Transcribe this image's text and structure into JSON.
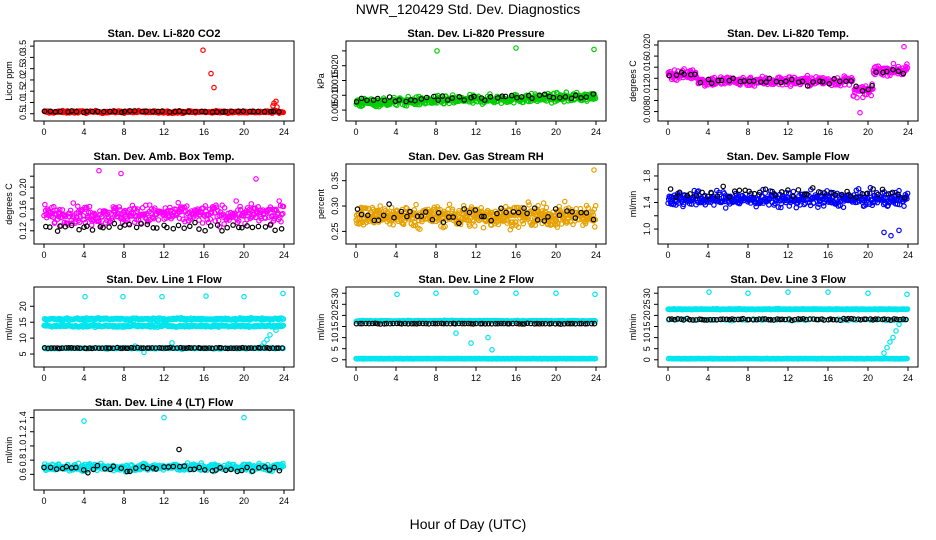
{
  "figure": {
    "title": "NWR_120429  Std. Dev. Diagnostics",
    "xlabel": "Hour of Day (UTC)"
  },
  "chart_data": [
    {
      "type": "scatter",
      "title": "Stan. Dev. Li-820 CO2",
      "ylabel": "Licor ppm",
      "xlim": [
        0,
        24
      ],
      "ylim": [
        0.4,
        3.55
      ],
      "xticks": [
        0,
        4,
        8,
        12,
        16,
        20,
        24
      ],
      "yticks": [
        0.5,
        1.0,
        1.5,
        2.0,
        2.5,
        3.0,
        3.5
      ],
      "ytick_labels": [
        "0.5",
        "1.0",
        "1.5",
        "2.0",
        "2.5",
        "3.0",
        "3.5"
      ],
      "series": [
        {
          "color": "#ff0000",
          "base": 0.58,
          "spread": 0.09,
          "n": 300,
          "pattern": "flat",
          "extra": [
            [
              15.9,
              3.32
            ],
            [
              16.7,
              2.28
            ],
            [
              17.0,
              1.66
            ],
            [
              23.0,
              0.97
            ],
            [
              23.2,
              1.05
            ],
            [
              22.9,
              0.85
            ],
            [
              23.3,
              0.8
            ]
          ]
        },
        {
          "color": "#000000",
          "base": 0.6,
          "spread": 0.05,
          "n": 45,
          "pattern": "flat"
        }
      ]
    },
    {
      "type": "scatter",
      "title": "Stan. Dev. Li-820 Pressure",
      "ylabel": "kPa",
      "xlim": [
        0,
        24
      ],
      "ylim": [
        0.003,
        0.027
      ],
      "xticks": [
        0,
        4,
        8,
        12,
        16,
        20,
        24
      ],
      "yticks": [
        0.005,
        0.01,
        0.015,
        0.02,
        0.025
      ],
      "ytick_labels": [
        "0.005",
        "0.010",
        "0.015",
        "0.020",
        ""
      ],
      "series": [
        {
          "color": "#00cc00",
          "base": 0.0075,
          "spread": 0.0025,
          "n": 420,
          "pattern": "rising",
          "extra": [
            [
              8.1,
              0.025
            ],
            [
              16.0,
              0.026
            ],
            [
              23.8,
              0.0255
            ]
          ]
        },
        {
          "color": "#000000",
          "base": 0.0085,
          "spread": 0.0015,
          "n": 45,
          "pattern": "rising"
        }
      ]
    },
    {
      "type": "scatter",
      "title": "Stan. Dev. Li-820 Temp.",
      "ylabel": "degrees C",
      "xlim": [
        0,
        24
      ],
      "ylim": [
        0.0072,
        0.02
      ],
      "xticks": [
        0,
        4,
        8,
        12,
        16,
        20,
        24
      ],
      "yticks": [
        0.008,
        0.01,
        0.012,
        0.014,
        0.016,
        0.018,
        0.02
      ],
      "ytick_labels": [
        "0.008",
        "",
        "0.012",
        "",
        "0.016",
        "",
        "0.020"
      ],
      "series": [
        {
          "color": "#ff00ff",
          "base": 0.0135,
          "spread": 0.0015,
          "n": 420,
          "pattern": "temp",
          "extra": [
            [
              19.2,
              0.0078
            ],
            [
              18.9,
              0.0105
            ],
            [
              23.6,
              0.0197
            ]
          ]
        },
        {
          "color": "#000000",
          "base": 0.0135,
          "spread": 0.0012,
          "n": 45,
          "pattern": "temp"
        }
      ]
    },
    {
      "type": "scatter",
      "title": "Stan. Dev. Amb. Box Temp.",
      "ylabel": "degrees C",
      "xlim": [
        0,
        24
      ],
      "ylim": [
        0.105,
        0.235
      ],
      "xticks": [
        0,
        4,
        8,
        12,
        16,
        20,
        24
      ],
      "yticks": [
        0.12,
        0.14,
        0.16,
        0.18,
        0.2,
        0.22
      ],
      "ytick_labels": [
        "0.12",
        "",
        "0.16",
        "",
        "0.20",
        ""
      ],
      "series": [
        {
          "color": "#ff00ff",
          "base": 0.15,
          "spread": 0.03,
          "n": 380,
          "pattern": "flat",
          "extra": [
            [
              5.5,
              0.23
            ],
            [
              7.7,
              0.225
            ],
            [
              21.2,
              0.215
            ]
          ]
        },
        {
          "color": "#000000",
          "base": 0.128,
          "spread": 0.012,
          "n": 45,
          "pattern": "flat"
        }
      ]
    },
    {
      "type": "scatter",
      "title": "Stan. Dev. Gas Stream RH",
      "ylabel": "percent",
      "xlim": [
        0,
        24
      ],
      "ylim": [
        0.235,
        0.375
      ],
      "xticks": [
        0,
        4,
        8,
        12,
        16,
        20,
        24
      ],
      "yticks": [
        0.25,
        0.3,
        0.35
      ],
      "ytick_labels": [
        "0.25",
        "0.30",
        "0.35"
      ],
      "series": [
        {
          "color": "#e6a000",
          "base": 0.28,
          "spread": 0.035,
          "n": 520,
          "pattern": "flat",
          "extra": [
            [
              23.8,
              0.371
            ]
          ]
        },
        {
          "color": "#000000",
          "base": 0.285,
          "spread": 0.03,
          "n": 45,
          "pattern": "flat"
        }
      ]
    },
    {
      "type": "scatter",
      "title": "Stan. Dev. Sample Flow",
      "ylabel": "ml/min",
      "xlim": [
        0,
        24
      ],
      "ylim": [
        0.85,
        1.92
      ],
      "xticks": [
        0,
        4,
        8,
        12,
        16,
        20,
        24
      ],
      "yticks": [
        1.0,
        1.2,
        1.4,
        1.6,
        1.8
      ],
      "ytick_labels": [
        "1.0",
        "",
        "1.4",
        "",
        "1.8"
      ],
      "series": [
        {
          "color": "#0000ff",
          "base": 1.45,
          "spread": 0.2,
          "n": 420,
          "pattern": "flat",
          "extra": [
            [
              22.3,
              0.9
            ],
            [
              21.6,
              0.95
            ],
            [
              23.1,
              0.98
            ]
          ]
        },
        {
          "color": "#000000",
          "base": 1.55,
          "spread": 0.15,
          "n": 45,
          "pattern": "flat"
        }
      ]
    },
    {
      "type": "scatter",
      "title": "Stan. Dev. Line 1 Flow",
      "ylabel": "ml/min",
      "xlim": [
        0,
        24
      ],
      "ylim": [
        2.5,
        24.8
      ],
      "xticks": [
        0,
        4,
        8,
        12,
        16,
        20,
        24
      ],
      "yticks": [
        5,
        10,
        15,
        20
      ],
      "ytick_labels": [
        "5",
        "10",
        "15",
        "20"
      ],
      "series": [
        {
          "color": "#00e5ee",
          "base": 16,
          "spread": 0.6,
          "n": 260,
          "pattern": "band16"
        },
        {
          "color": "#00e5ee",
          "base": 13.8,
          "spread": 0.6,
          "n": 260,
          "pattern": "band14"
        },
        {
          "color": "#00e5ee",
          "base": 6.8,
          "spread": 0.3,
          "n": 140,
          "pattern": "flat",
          "extra": [
            [
              4.1,
              23.0
            ],
            [
              7.9,
              23.0
            ],
            [
              11.8,
              23.0
            ],
            [
              16.2,
              23.2
            ],
            [
              20.0,
              23.0
            ],
            [
              23.9,
              24.0
            ],
            [
              9.1,
              7.5
            ],
            [
              12.8,
              8.5
            ],
            [
              13.8,
              6.5
            ],
            [
              10.0,
              5.5
            ],
            [
              22.0,
              8.5
            ],
            [
              22.3,
              9.5
            ],
            [
              22.6,
              11
            ],
            [
              21.8,
              7.5
            ],
            [
              23.2,
              12.5
            ]
          ]
        },
        {
          "color": "#000000",
          "base": 6.9,
          "spread": 0.2,
          "n": 80,
          "pattern": "flat"
        }
      ]
    },
    {
      "type": "scatter",
      "title": "Stan. Dev. Line 2 Flow",
      "ylabel": "ml/min",
      "xlim": [
        0,
        24
      ],
      "ylim": [
        -1,
        31
      ],
      "xticks": [
        0,
        4,
        8,
        12,
        16,
        20,
        24
      ],
      "yticks": [
        0,
        5,
        10,
        15,
        20,
        25,
        30
      ],
      "ytick_labels": [
        "0",
        "5",
        "10",
        "15",
        "20",
        "25",
        "30"
      ],
      "series": [
        {
          "color": "#00e5ee",
          "base": 17.5,
          "spread": 0.4,
          "n": 300,
          "pattern": "flat",
          "extra": [
            [
              4.1,
              29.5
            ],
            [
              8.0,
              30.0
            ],
            [
              12.0,
              30.5
            ],
            [
              16.0,
              30.0
            ],
            [
              20.0,
              30.0
            ],
            [
              23.9,
              29.5
            ],
            [
              10.0,
              12
            ],
            [
              11.5,
              7.5
            ],
            [
              13.2,
              10
            ],
            [
              13.6,
              4.5
            ]
          ]
        },
        {
          "color": "#00e5ee",
          "base": 0.5,
          "spread": 0.2,
          "n": 260,
          "pattern": "flat"
        },
        {
          "color": "#000000",
          "base": 16.3,
          "spread": 0.3,
          "n": 80,
          "pattern": "flat"
        }
      ]
    },
    {
      "type": "scatter",
      "title": "Stan. Dev. Line 3 Flow",
      "ylabel": "ml/min",
      "xlim": [
        0,
        24
      ],
      "ylim": [
        -1,
        31
      ],
      "xticks": [
        0,
        4,
        8,
        12,
        16,
        20,
        24
      ],
      "yticks": [
        0,
        5,
        10,
        15,
        20,
        25,
        30
      ],
      "ytick_labels": [
        "0",
        "5",
        "10",
        "15",
        "20",
        "25",
        "30"
      ],
      "series": [
        {
          "color": "#00e5ee",
          "base": 22.8,
          "spread": 0.3,
          "n": 300,
          "pattern": "flat",
          "extra": [
            [
              4.1,
              30.5
            ],
            [
              8.0,
              30.0
            ],
            [
              12.0,
              30.5
            ],
            [
              16.0,
              30.5
            ],
            [
              20.0,
              30.0
            ],
            [
              23.9,
              29.5
            ],
            [
              21.9,
              5.5
            ],
            [
              22.2,
              8
            ],
            [
              22.5,
              10
            ],
            [
              22.8,
              13
            ],
            [
              23.1,
              16
            ],
            [
              21.6,
              3
            ]
          ]
        },
        {
          "color": "#00e5ee",
          "base": 0.5,
          "spread": 0.2,
          "n": 260,
          "pattern": "flat"
        },
        {
          "color": "#00e5ee",
          "base": 18,
          "spread": 0.6,
          "n": 60,
          "pattern": "flat"
        },
        {
          "color": "#000000",
          "base": 18.2,
          "spread": 0.6,
          "n": 80,
          "pattern": "flat"
        }
      ]
    },
    {
      "type": "scatter",
      "title": "Stan. Dev. Line 4 (LT) Flow",
      "ylabel": "ml/min",
      "xlim": [
        0,
        24
      ],
      "ylim": [
        0.45,
        1.45
      ],
      "xticks": [
        0,
        4,
        8,
        12,
        16,
        20,
        24
      ],
      "yticks": [
        0.6,
        0.8,
        1.0,
        1.2,
        1.4
      ],
      "ytick_labels": [
        "0.6",
        "0.8",
        "1.0",
        "1.2",
        "1.4"
      ],
      "series": [
        {
          "color": "#00e5ee",
          "base": 0.7,
          "spread": 0.09,
          "n": 380,
          "pattern": "flat",
          "extra": [
            [
              4.0,
              1.35
            ],
            [
              12.0,
              1.4
            ],
            [
              20.0,
              1.4
            ]
          ]
        },
        {
          "color": "#000000",
          "base": 0.68,
          "spread": 0.08,
          "n": 45,
          "pattern": "flat",
          "extra": [
            [
              13.5,
              0.95
            ]
          ]
        }
      ]
    }
  ]
}
